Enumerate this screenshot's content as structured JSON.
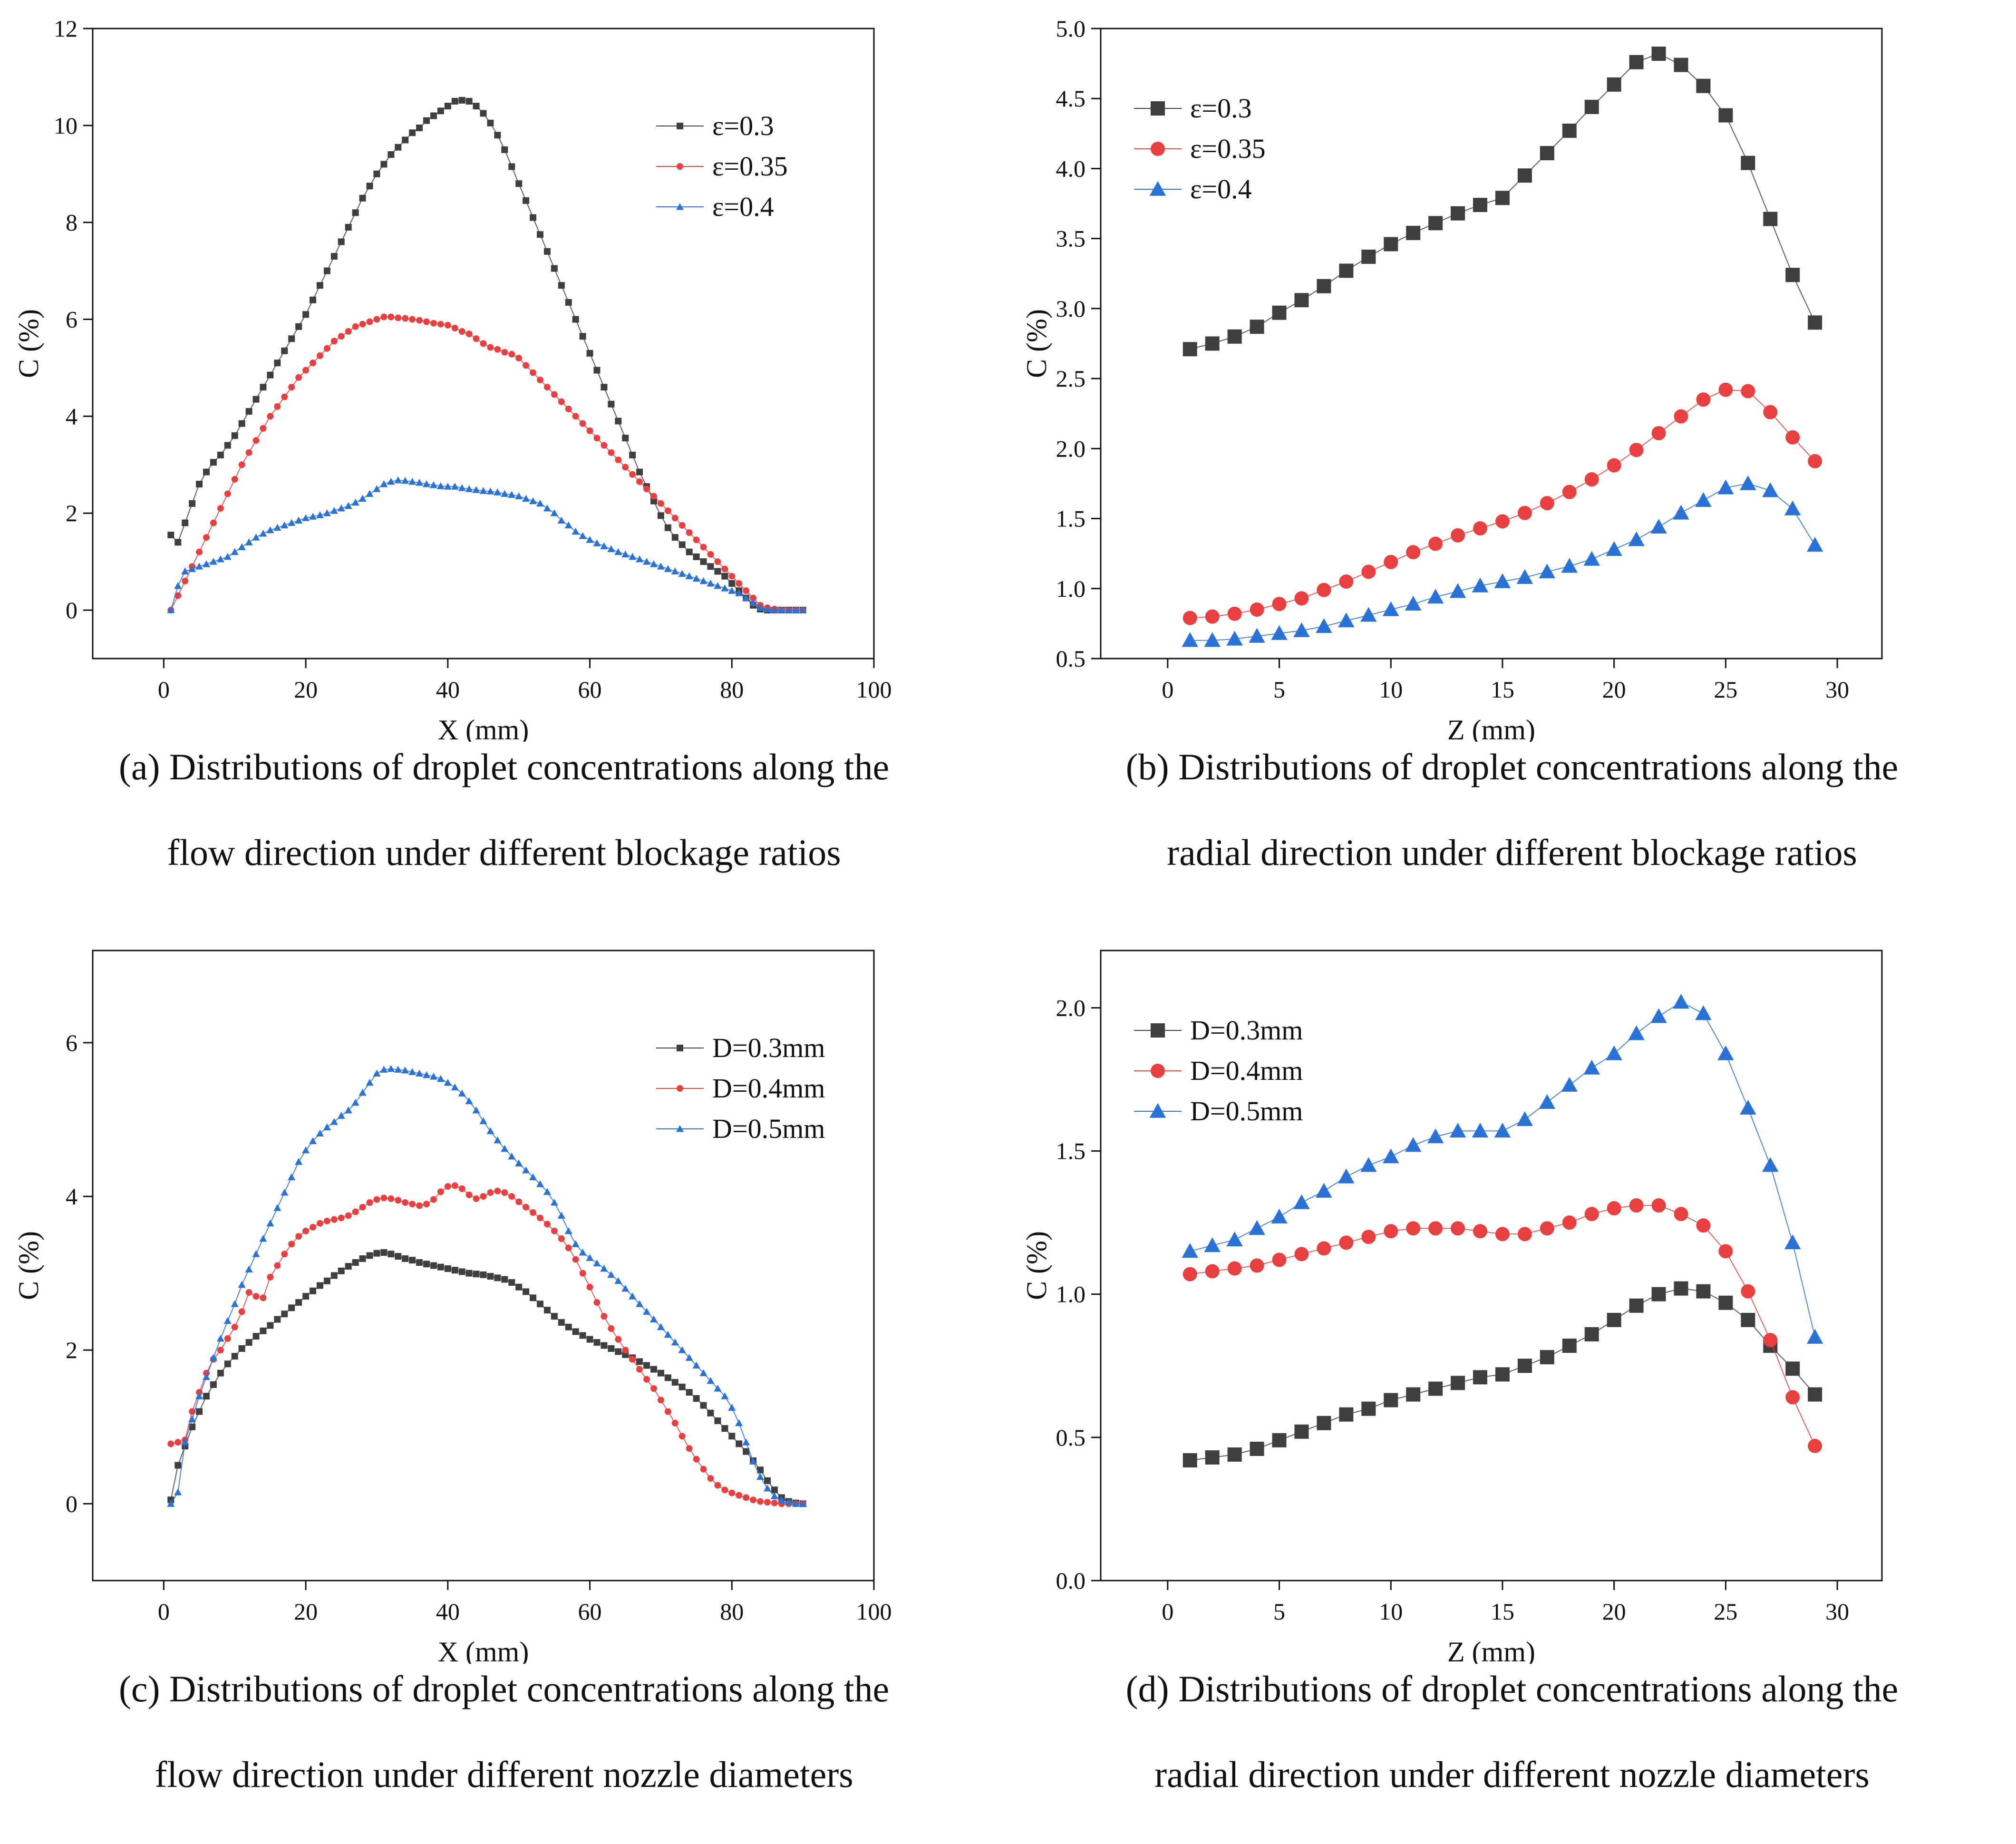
{
  "charts": [
    {
      "type": "line",
      "xlabel": "X (mm)",
      "ylabel": "C (%)",
      "xlim": [
        -10,
        100
      ],
      "ylim": [
        -1,
        12
      ],
      "xticks": [
        0,
        20,
        40,
        60,
        80,
        100
      ],
      "yticks": [
        0,
        2,
        4,
        6,
        8,
        10,
        12
      ],
      "ytick_decimals": 0,
      "legend_position": "top-right",
      "marker_size": "small",
      "caption_line1": "(a) Distributions of droplet concentrations along the",
      "caption_line2": "flow direction under different blockage ratios",
      "series": [
        {
          "name": "ε=0.3",
          "color": "#3f3f3f",
          "marker": "square",
          "x_start": 1,
          "x_step": 1,
          "values": [
            1.55,
            1.4,
            1.8,
            2.2,
            2.6,
            2.85,
            3.05,
            3.2,
            3.4,
            3.6,
            3.85,
            4.1,
            4.35,
            4.6,
            4.85,
            5.1,
            5.35,
            5.6,
            5.85,
            6.1,
            6.4,
            6.7,
            7.0,
            7.3,
            7.6,
            7.9,
            8.2,
            8.5,
            8.75,
            9.0,
            9.2,
            9.4,
            9.55,
            9.7,
            9.85,
            9.95,
            10.1,
            10.2,
            10.3,
            10.4,
            10.5,
            10.52,
            10.5,
            10.4,
            10.25,
            10.05,
            9.8,
            9.5,
            9.15,
            8.8,
            8.45,
            8.1,
            7.75,
            7.4,
            7.05,
            6.7,
            6.35,
            6.0,
            5.65,
            5.3,
            4.95,
            4.6,
            4.25,
            3.9,
            3.55,
            3.2,
            2.85,
            2.55,
            2.25,
            1.95,
            1.7,
            1.5,
            1.35,
            1.2,
            1.1,
            1.0,
            0.9,
            0.8,
            0.7,
            0.55,
            0.4,
            0.25,
            0.1,
            0.02,
            0.0,
            0.0,
            0.0,
            0.0,
            0.0,
            0.0
          ]
        },
        {
          "name": "ε=0.35",
          "color": "#e84040",
          "marker": "circle",
          "x_start": 1,
          "x_step": 1,
          "values": [
            0.0,
            0.3,
            0.6,
            0.9,
            1.2,
            1.5,
            1.8,
            2.1,
            2.4,
            2.7,
            3.0,
            3.25,
            3.5,
            3.75,
            4.0,
            4.2,
            4.4,
            4.6,
            4.8,
            4.95,
            5.1,
            5.25,
            5.4,
            5.55,
            5.65,
            5.75,
            5.85,
            5.9,
            5.95,
            6.0,
            6.05,
            6.05,
            6.03,
            6.02,
            6.0,
            5.98,
            5.95,
            5.92,
            5.9,
            5.88,
            5.82,
            5.75,
            5.7,
            5.6,
            5.5,
            5.42,
            5.38,
            5.32,
            5.28,
            5.2,
            5.05,
            4.9,
            4.75,
            4.6,
            4.45,
            4.3,
            4.15,
            4.0,
            3.85,
            3.7,
            3.55,
            3.4,
            3.25,
            3.1,
            2.95,
            2.8,
            2.65,
            2.5,
            2.35,
            2.2,
            2.05,
            1.9,
            1.75,
            1.6,
            1.45,
            1.3,
            1.15,
            1.0,
            0.85,
            0.7,
            0.55,
            0.4,
            0.25,
            0.1,
            0.05,
            0.02,
            0.0,
            0.0,
            0.0,
            0.0
          ]
        },
        {
          "name": "ε=0.4",
          "color": "#2a72d6",
          "marker": "triangle",
          "x_start": 1,
          "x_step": 1,
          "values": [
            0.0,
            0.5,
            0.8,
            0.85,
            0.9,
            0.95,
            1.0,
            1.05,
            1.1,
            1.2,
            1.3,
            1.4,
            1.5,
            1.58,
            1.65,
            1.7,
            1.75,
            1.8,
            1.85,
            1.9,
            1.93,
            1.96,
            2.0,
            2.05,
            2.1,
            2.15,
            2.22,
            2.3,
            2.4,
            2.5,
            2.6,
            2.65,
            2.68,
            2.67,
            2.65,
            2.63,
            2.6,
            2.58,
            2.56,
            2.55,
            2.55,
            2.52,
            2.5,
            2.48,
            2.46,
            2.45,
            2.43,
            2.4,
            2.38,
            2.35,
            2.3,
            2.25,
            2.2,
            2.1,
            2.0,
            1.85,
            1.75,
            1.62,
            1.53,
            1.45,
            1.38,
            1.32,
            1.26,
            1.2,
            1.15,
            1.1,
            1.05,
            1.0,
            0.95,
            0.9,
            0.85,
            0.8,
            0.75,
            0.7,
            0.65,
            0.6,
            0.55,
            0.5,
            0.45,
            0.4,
            0.35,
            0.25,
            0.15,
            0.05,
            0.02,
            0.0,
            0.0,
            0.0,
            0.0,
            0.0
          ]
        }
      ]
    },
    {
      "type": "line",
      "xlabel": "Z (mm)",
      "ylabel": "C (%)",
      "xlim": [
        -3,
        32
      ],
      "ylim": [
        0.5,
        5.0
      ],
      "xticks": [
        0,
        5,
        10,
        15,
        20,
        25,
        30
      ],
      "yticks": [
        0.5,
        1.0,
        1.5,
        2.0,
        2.5,
        3.0,
        3.5,
        4.0,
        4.5,
        5.0
      ],
      "ytick_decimals": 1,
      "legend_position": "top-left",
      "marker_size": "large",
      "caption_line1": "(b) Distributions of droplet concentrations along the",
      "caption_line2": "radial direction under different blockage ratios",
      "series": [
        {
          "name": "ε=0.3",
          "color": "#3f3f3f",
          "marker": "square",
          "x_start": 1,
          "x_step": 1,
          "values": [
            2.71,
            2.75,
            2.8,
            2.87,
            2.97,
            3.06,
            3.16,
            3.27,
            3.37,
            3.46,
            3.54,
            3.61,
            3.68,
            3.74,
            3.79,
            3.95,
            4.11,
            4.27,
            4.44,
            4.6,
            4.76,
            4.82,
            4.74,
            4.59,
            4.38,
            4.04,
            3.64,
            3.24,
            2.9
          ]
        },
        {
          "name": "ε=0.35",
          "color": "#e84040",
          "marker": "circle",
          "x_start": 1,
          "x_step": 1,
          "values": [
            0.79,
            0.8,
            0.82,
            0.85,
            0.89,
            0.93,
            0.99,
            1.05,
            1.12,
            1.19,
            1.26,
            1.32,
            1.38,
            1.43,
            1.48,
            1.54,
            1.61,
            1.69,
            1.78,
            1.88,
            1.99,
            2.11,
            2.23,
            2.35,
            2.42,
            2.41,
            2.26,
            2.08,
            1.91
          ]
        },
        {
          "name": "ε=0.4",
          "color": "#2a72d6",
          "marker": "triangle",
          "x_start": 1,
          "x_step": 1,
          "values": [
            0.63,
            0.63,
            0.64,
            0.66,
            0.68,
            0.7,
            0.73,
            0.77,
            0.81,
            0.85,
            0.89,
            0.94,
            0.98,
            1.02,
            1.05,
            1.08,
            1.12,
            1.16,
            1.21,
            1.28,
            1.35,
            1.44,
            1.54,
            1.63,
            1.72,
            1.75,
            1.7,
            1.57,
            1.31
          ]
        }
      ]
    },
    {
      "type": "line",
      "xlabel": "X (mm)",
      "ylabel": "C (%)",
      "xlim": [
        -10,
        100
      ],
      "ylim": [
        -1,
        7.2
      ],
      "xticks": [
        0,
        20,
        40,
        60,
        80,
        100
      ],
      "yticks": [
        0,
        2,
        4,
        6
      ],
      "ytick_decimals": 0,
      "legend_position": "top-right",
      "marker_size": "small",
      "caption_line1": "(c) Distributions of droplet concentrations along the",
      "caption_line2": "flow direction under different nozzle diameters",
      "series": [
        {
          "name": "D=0.3mm",
          "color": "#3f3f3f",
          "marker": "square",
          "x_start": 1,
          "x_step": 1,
          "values": [
            0.05,
            0.5,
            0.75,
            1.0,
            1.2,
            1.4,
            1.55,
            1.7,
            1.82,
            1.92,
            2.02,
            2.1,
            2.18,
            2.25,
            2.32,
            2.4,
            2.47,
            2.55,
            2.62,
            2.7,
            2.77,
            2.84,
            2.9,
            2.97,
            3.03,
            3.09,
            3.14,
            3.19,
            3.23,
            3.26,
            3.27,
            3.25,
            3.22,
            3.19,
            3.17,
            3.14,
            3.12,
            3.1,
            3.08,
            3.06,
            3.04,
            3.02,
            3.0,
            2.99,
            2.98,
            2.96,
            2.94,
            2.92,
            2.88,
            2.82,
            2.76,
            2.68,
            2.6,
            2.52,
            2.44,
            2.36,
            2.3,
            2.24,
            2.19,
            2.14,
            2.1,
            2.06,
            2.02,
            1.98,
            1.94,
            1.9,
            1.85,
            1.8,
            1.75,
            1.7,
            1.64,
            1.58,
            1.52,
            1.45,
            1.37,
            1.28,
            1.18,
            1.08,
            0.98,
            0.88,
            0.78,
            0.68,
            0.56,
            0.44,
            0.3,
            0.18,
            0.08,
            0.03,
            0.01,
            0.0
          ]
        },
        {
          "name": "D=0.4mm",
          "color": "#e84040",
          "marker": "circle",
          "x_start": 1,
          "x_step": 1,
          "values": [
            0.78,
            0.8,
            0.83,
            1.2,
            1.45,
            1.7,
            1.88,
            2.0,
            2.15,
            2.3,
            2.5,
            2.75,
            2.7,
            2.68,
            2.95,
            3.1,
            3.25,
            3.38,
            3.48,
            3.55,
            3.6,
            3.65,
            3.68,
            3.7,
            3.72,
            3.75,
            3.8,
            3.86,
            3.92,
            3.96,
            3.98,
            3.97,
            3.95,
            3.92,
            3.9,
            3.88,
            3.9,
            3.96,
            4.06,
            4.13,
            4.14,
            4.1,
            4.02,
            3.97,
            4.0,
            4.05,
            4.07,
            4.05,
            4.0,
            3.93,
            3.86,
            3.79,
            3.72,
            3.64,
            3.55,
            3.45,
            3.33,
            3.18,
            3.0,
            2.82,
            2.62,
            2.44,
            2.28,
            2.14,
            2.0,
            1.88,
            1.75,
            1.62,
            1.5,
            1.35,
            1.2,
            1.05,
            0.88,
            0.72,
            0.58,
            0.45,
            0.33,
            0.24,
            0.18,
            0.14,
            0.11,
            0.08,
            0.05,
            0.03,
            0.02,
            0.01,
            0.0,
            0.0,
            0.0,
            0.0
          ]
        },
        {
          "name": "D=0.5mm",
          "color": "#2a72d6",
          "marker": "triangle",
          "x_start": 1,
          "x_step": 1,
          "values": [
            0.0,
            0.15,
            0.8,
            1.1,
            1.4,
            1.65,
            1.9,
            2.15,
            2.38,
            2.6,
            2.85,
            3.05,
            3.25,
            3.45,
            3.65,
            3.85,
            4.05,
            4.25,
            4.45,
            4.6,
            4.72,
            4.82,
            4.9,
            4.97,
            5.05,
            5.12,
            5.22,
            5.35,
            5.48,
            5.6,
            5.65,
            5.66,
            5.65,
            5.64,
            5.62,
            5.6,
            5.58,
            5.56,
            5.53,
            5.48,
            5.42,
            5.34,
            5.24,
            5.12,
            4.98,
            4.85,
            4.73,
            4.62,
            4.52,
            4.43,
            4.34,
            4.25,
            4.16,
            4.06,
            3.92,
            3.75,
            3.55,
            3.38,
            3.27,
            3.2,
            3.13,
            3.06,
            2.98,
            2.9,
            2.8,
            2.7,
            2.6,
            2.5,
            2.4,
            2.3,
            2.2,
            2.1,
            2.0,
            1.9,
            1.8,
            1.7,
            1.6,
            1.5,
            1.4,
            1.25,
            1.05,
            0.8,
            0.55,
            0.35,
            0.2,
            0.1,
            0.05,
            0.02,
            0.0,
            0.0
          ]
        }
      ]
    },
    {
      "type": "line",
      "xlabel": "Z (mm)",
      "ylabel": "C (%)",
      "xlim": [
        -3,
        32
      ],
      "ylim": [
        0.0,
        2.2
      ],
      "xticks": [
        0,
        5,
        10,
        15,
        20,
        25,
        30
      ],
      "yticks": [
        0.0,
        0.5,
        1.0,
        1.5,
        2.0
      ],
      "ytick_decimals": 1,
      "legend_position": "top-left",
      "marker_size": "large",
      "caption_line1": "(d) Distributions of droplet concentrations along the",
      "caption_line2": "radial direction under different nozzle diameters",
      "series": [
        {
          "name": "D=0.3mm",
          "color": "#3f3f3f",
          "marker": "square",
          "x_start": 1,
          "x_step": 1,
          "values": [
            0.42,
            0.43,
            0.44,
            0.46,
            0.49,
            0.52,
            0.55,
            0.58,
            0.6,
            0.63,
            0.65,
            0.67,
            0.69,
            0.71,
            0.72,
            0.75,
            0.78,
            0.82,
            0.86,
            0.91,
            0.96,
            1.0,
            1.02,
            1.01,
            0.97,
            0.91,
            0.82,
            0.74,
            0.65
          ]
        },
        {
          "name": "D=0.4mm",
          "color": "#e84040",
          "marker": "circle",
          "x_start": 1,
          "x_step": 1,
          "values": [
            1.07,
            1.08,
            1.09,
            1.1,
            1.12,
            1.14,
            1.16,
            1.18,
            1.2,
            1.22,
            1.23,
            1.23,
            1.23,
            1.22,
            1.21,
            1.21,
            1.23,
            1.25,
            1.28,
            1.3,
            1.31,
            1.31,
            1.28,
            1.24,
            1.15,
            1.01,
            0.84,
            0.64,
            0.47
          ]
        },
        {
          "name": "D=0.5mm",
          "color": "#2a72d6",
          "marker": "triangle",
          "x_start": 1,
          "x_step": 1,
          "values": [
            1.15,
            1.17,
            1.19,
            1.23,
            1.27,
            1.32,
            1.36,
            1.41,
            1.45,
            1.48,
            1.52,
            1.55,
            1.57,
            1.57,
            1.57,
            1.61,
            1.67,
            1.73,
            1.79,
            1.84,
            1.91,
            1.97,
            2.02,
            1.98,
            1.84,
            1.65,
            1.45,
            1.18,
            0.85
          ]
        }
      ]
    }
  ]
}
